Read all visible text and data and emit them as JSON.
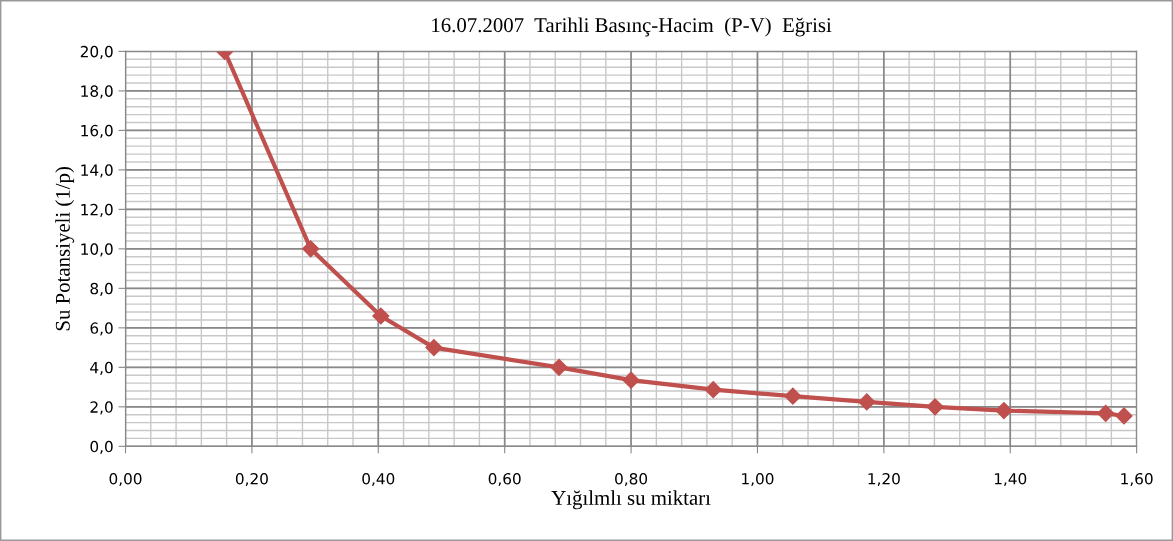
{
  "chart_data": {
    "type": "line",
    "title": "16.07.2007  Tarihli Basınç-Hacim  (P-V)  Eğrisi",
    "xlabel": "Yığılmlı su miktarı",
    "ylabel": "Su Potansiyeli (1/p)",
    "x": [
      0.157,
      0.293,
      0.404,
      0.488,
      0.686,
      0.8,
      0.93,
      1.056,
      1.173,
      1.281,
      1.39,
      1.551,
      1.58
    ],
    "series": [
      {
        "color": "#c0504d",
        "values": [
          20.0,
          10.0,
          6.6,
          5.0,
          4.0,
          3.35,
          2.87,
          2.54,
          2.25,
          2.0,
          1.81,
          1.67,
          1.54
        ]
      }
    ],
    "xlim": [
      0,
      1.6
    ],
    "ylim": [
      0,
      20
    ],
    "xticks": [
      {
        "value": 0,
        "label": "0,00"
      },
      {
        "value": 0.2,
        "label": "0,20"
      },
      {
        "value": 0.4,
        "label": "0,40"
      },
      {
        "value": 0.6,
        "label": "0,60"
      },
      {
        "value": 0.8,
        "label": "0,80"
      },
      {
        "value": 1.0,
        "label": "1,00"
      },
      {
        "value": 1.2,
        "label": "1,20"
      },
      {
        "value": 1.4,
        "label": "1,40"
      },
      {
        "value": 1.6,
        "label": "1,60"
      }
    ],
    "yticks": [
      {
        "value": 0,
        "label": "0,0"
      },
      {
        "value": 2,
        "label": "2,0"
      },
      {
        "value": 4,
        "label": "4,0"
      },
      {
        "value": 6,
        "label": "6,0"
      },
      {
        "value": 8,
        "label": "8,0"
      },
      {
        "value": 10,
        "label": "10,0"
      },
      {
        "value": 12,
        "label": "12,0"
      },
      {
        "value": 14,
        "label": "14,0"
      },
      {
        "value": 16,
        "label": "16,0"
      },
      {
        "value": 18,
        "label": "18,0"
      },
      {
        "value": 20,
        "label": "20,0"
      }
    ],
    "grid": true,
    "marker": "diamond",
    "line_style": "solid",
    "legend": false
  }
}
